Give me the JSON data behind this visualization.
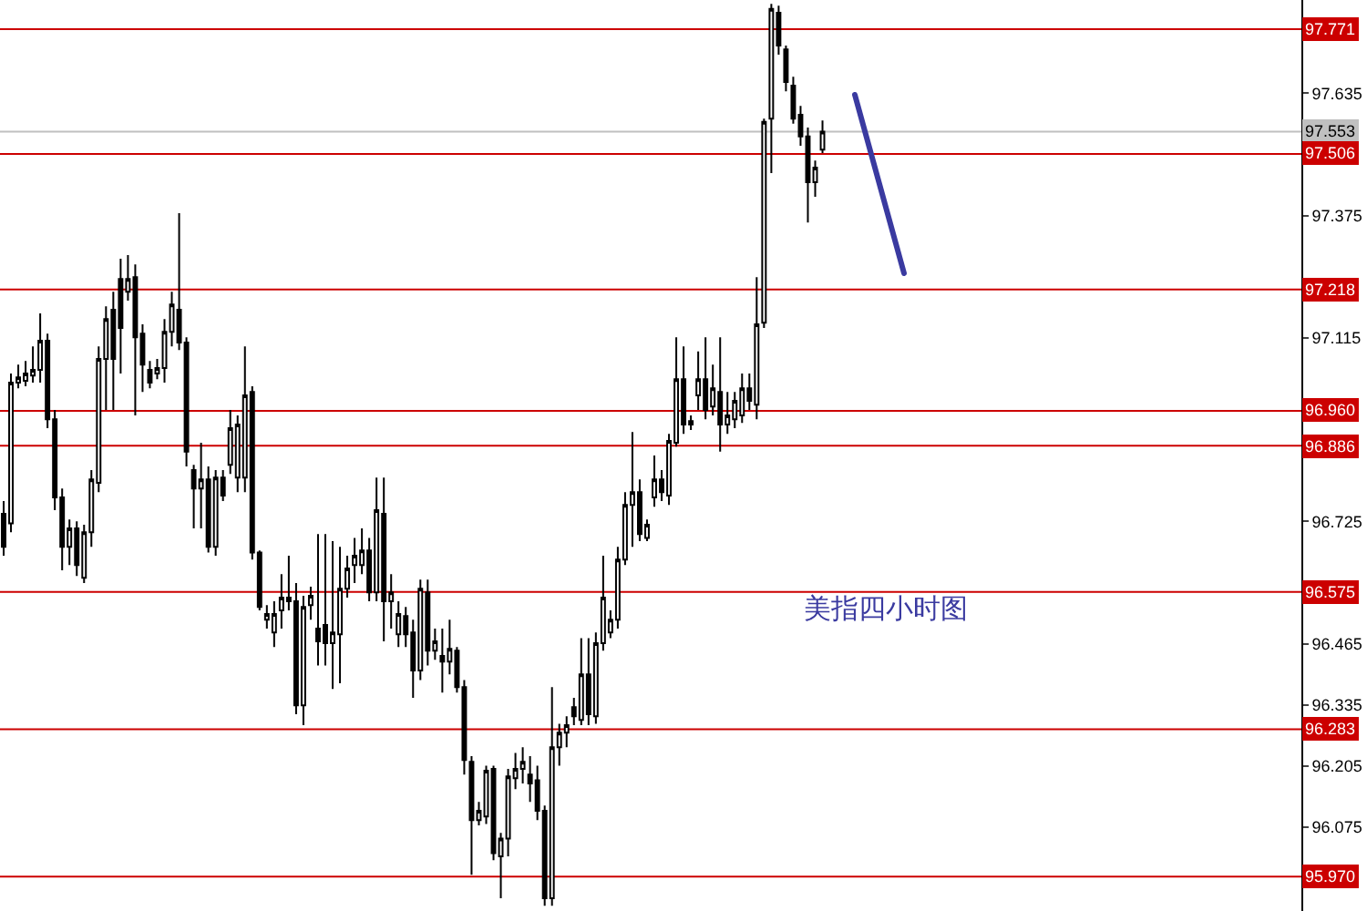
{
  "chart_data": {
    "type": "candlestick",
    "categories": [
      null,
      null,
      null,
      null,
      null,
      null,
      null,
      null,
      null,
      null,
      null,
      null,
      null,
      null,
      null,
      null,
      null,
      null,
      null,
      null,
      null,
      null,
      null,
      null,
      null,
      null,
      null,
      null,
      null,
      null,
      null,
      null,
      null,
      null,
      null,
      null,
      null,
      null,
      null,
      null,
      null,
      null,
      null,
      null,
      null,
      null,
      null,
      null,
      null,
      null,
      null,
      null,
      null,
      null,
      null,
      null,
      null,
      null,
      null,
      null,
      null,
      null,
      null,
      null,
      null,
      null,
      null,
      null,
      null,
      null,
      null,
      null,
      null,
      null,
      null,
      null,
      null,
      null,
      null,
      null,
      null,
      null,
      null,
      null,
      null,
      null,
      null,
      null,
      null,
      null,
      null,
      null,
      null,
      null,
      null,
      null,
      null,
      null,
      null,
      null,
      null,
      null,
      null,
      null,
      null,
      null,
      null,
      null,
      null,
      null,
      null,
      null,
      null,
      null,
      null,
      null,
      null,
      null,
      null,
      null,
      null,
      null,
      null,
      null,
      null,
      null,
      null,
      null,
      null,
      null,
      null,
      null,
      null,
      null,
      null,
      null,
      null,
      null,
      null,
      null,
      null,
      null,
      null,
      null,
      null,
      null,
      null,
      null,
      null,
      null,
      null,
      null,
      null,
      null,
      null,
      null,
      null,
      null,
      null,
      null,
      null,
      null,
      null,
      null,
      null,
      null,
      null,
      null,
      null,
      null,
      null,
      null,
      null,
      null,
      null,
      null,
      null,
      null
    ],
    "ohlc": [
      [
        96.741,
        96.768,
        96.652,
        96.671
      ],
      [
        96.721,
        97.039,
        96.702,
        97.02
      ],
      [
        97.02,
        97.058,
        97.008,
        97.031
      ],
      [
        97.024,
        97.066,
        97.012,
        97.039
      ],
      [
        97.035,
        97.097,
        97.02,
        97.047
      ],
      [
        97.047,
        97.167,
        97.02,
        97.109
      ],
      [
        97.109,
        97.124,
        96.923,
        96.942
      ],
      [
        96.942,
        96.962,
        96.749,
        96.776
      ],
      [
        96.776,
        96.795,
        96.621,
        96.671
      ],
      [
        96.671,
        96.729,
        96.632,
        96.71
      ],
      [
        96.71,
        96.725,
        96.609,
        96.632
      ],
      [
        96.605,
        96.718,
        96.594,
        96.702
      ],
      [
        96.702,
        96.834,
        96.671,
        96.814
      ],
      [
        96.807,
        97.097,
        96.787,
        97.07
      ],
      [
        97.07,
        97.182,
        96.962,
        97.155
      ],
      [
        97.175,
        97.213,
        96.962,
        97.07
      ],
      [
        97.24,
        97.283,
        97.039,
        97.136
      ],
      [
        97.213,
        97.291,
        97.194,
        97.24
      ],
      [
        97.244,
        97.271,
        96.95,
        97.116
      ],
      [
        97.124,
        97.144,
        97.0,
        97.058
      ],
      [
        97.047,
        97.066,
        97.008,
        97.02
      ],
      [
        97.039,
        97.07,
        97.027,
        97.051
      ],
      [
        97.051,
        97.155,
        97.02,
        97.128
      ],
      [
        97.128,
        97.213,
        97.097,
        97.186
      ],
      [
        97.175,
        97.38,
        97.089,
        97.105
      ],
      [
        97.105,
        97.116,
        96.842,
        96.873
      ],
      [
        96.834,
        96.845,
        96.71,
        96.795
      ],
      [
        96.795,
        96.892,
        96.71,
        96.814
      ],
      [
        96.814,
        96.842,
        96.659,
        96.671
      ],
      [
        96.671,
        96.834,
        96.652,
        96.818
      ],
      [
        96.818,
        96.834,
        96.768,
        96.78
      ],
      [
        96.845,
        96.962,
        96.826,
        96.923
      ],
      [
        96.818,
        96.95,
        96.787,
        96.931
      ],
      [
        96.818,
        97.097,
        96.787,
        96.993
      ],
      [
        97.0,
        97.012,
        96.644,
        96.659
      ],
      [
        96.659,
        96.663,
        96.536,
        96.543
      ],
      [
        96.516,
        96.547,
        96.497,
        96.528
      ],
      [
        96.489,
        96.555,
        96.458,
        96.528
      ],
      [
        96.536,
        96.613,
        96.497,
        96.563
      ],
      [
        96.563,
        96.652,
        96.536,
        96.555
      ],
      [
        96.555,
        96.594,
        96.315,
        96.334
      ],
      [
        96.334,
        96.567,
        96.292,
        96.543
      ],
      [
        96.547,
        96.586,
        96.516,
        96.567
      ],
      [
        96.497,
        96.698,
        96.419,
        96.47
      ],
      [
        96.505,
        96.698,
        96.419,
        96.466
      ],
      [
        96.466,
        96.683,
        96.369,
        96.489
      ],
      [
        96.485,
        96.671,
        96.381,
        96.582
      ],
      [
        96.582,
        96.652,
        96.563,
        96.625
      ],
      [
        96.632,
        96.69,
        96.594,
        96.652
      ],
      [
        96.632,
        96.71,
        96.613,
        96.663
      ],
      [
        96.663,
        96.69,
        96.555,
        96.574
      ],
      [
        96.574,
        96.818,
        96.555,
        96.749
      ],
      [
        96.741,
        96.818,
        96.47,
        96.555
      ],
      [
        96.555,
        96.613,
        96.497,
        96.574
      ],
      [
        96.485,
        96.555,
        96.458,
        96.528
      ],
      [
        96.524,
        96.543,
        96.458,
        96.485
      ],
      [
        96.489,
        96.516,
        96.35,
        96.408
      ],
      [
        96.408,
        96.601,
        96.388,
        96.582
      ],
      [
        96.574,
        96.601,
        96.419,
        96.45
      ],
      [
        96.45,
        96.497,
        96.431,
        96.47
      ],
      [
        96.439,
        96.497,
        96.361,
        96.427
      ],
      [
        96.427,
        96.516,
        96.4,
        96.454
      ],
      [
        96.45,
        96.458,
        96.361,
        96.373
      ],
      [
        96.373,
        96.388,
        96.187,
        96.218
      ],
      [
        96.214,
        96.226,
        95.974,
        96.09
      ],
      [
        96.09,
        96.129,
        96.079,
        96.11
      ],
      [
        96.098,
        96.206,
        96.082,
        96.195
      ],
      [
        96.199,
        96.206,
        96.005,
        96.02
      ],
      [
        96.013,
        96.063,
        95.924,
        96.051
      ],
      [
        96.051,
        96.199,
        96.013,
        96.183
      ],
      [
        96.179,
        96.233,
        96.156,
        96.199
      ],
      [
        96.199,
        96.245,
        96.168,
        96.214
      ],
      [
        96.187,
        96.226,
        96.129,
        96.168
      ],
      [
        96.175,
        96.206,
        96.09,
        96.11
      ],
      [
        96.11,
        96.121,
        95.908,
        95.924
      ],
      [
        95.924,
        96.373,
        95.908,
        96.245
      ],
      [
        96.245,
        96.295,
        96.206,
        96.276
      ],
      [
        96.276,
        96.311,
        96.245,
        96.292
      ],
      [
        96.33,
        96.35,
        96.292,
        96.311
      ],
      [
        96.303,
        96.477,
        96.292,
        96.4
      ],
      [
        96.4,
        96.477,
        96.292,
        96.315
      ],
      [
        96.311,
        96.489,
        96.295,
        96.466
      ],
      [
        96.466,
        96.652,
        96.45,
        96.563
      ],
      [
        96.489,
        96.536,
        96.477,
        96.516
      ],
      [
        96.516,
        96.671,
        96.497,
        96.644
      ],
      [
        96.644,
        96.787,
        96.632,
        96.76
      ],
      [
        96.76,
        96.915,
        96.671,
        96.787
      ],
      [
        96.787,
        96.814,
        96.683,
        96.698
      ],
      [
        96.69,
        96.729,
        96.683,
        96.718
      ],
      [
        96.776,
        96.865,
        96.756,
        96.814
      ],
      [
        96.814,
        96.834,
        96.768,
        96.787
      ],
      [
        96.78,
        96.911,
        96.76,
        96.896
      ],
      [
        96.892,
        97.116,
        96.884,
        97.027
      ],
      [
        97.027,
        97.097,
        96.911,
        96.931
      ],
      [
        96.938,
        96.95,
        96.919,
        96.931
      ],
      [
        96.993,
        97.086,
        96.962,
        97.027
      ],
      [
        97.027,
        97.116,
        96.942,
        96.962
      ],
      [
        96.969,
        97.058,
        96.95,
        97.008
      ],
      [
        97.0,
        97.116,
        96.873,
        96.931
      ],
      [
        96.931,
        97.0,
        96.911,
        96.95
      ],
      [
        96.942,
        97.0,
        96.923,
        96.981
      ],
      [
        96.95,
        97.039,
        96.934,
        97.008
      ],
      [
        97.008,
        97.039,
        96.962,
        96.981
      ],
      [
        96.973,
        97.244,
        96.942,
        97.144
      ],
      [
        97.147,
        97.581,
        97.136,
        97.574
      ],
      [
        97.581,
        97.825,
        97.465,
        97.814
      ],
      [
        97.806,
        97.821,
        97.717,
        97.736
      ],
      [
        97.728,
        97.736,
        97.639,
        97.659
      ],
      [
        97.651,
        97.67,
        97.57,
        97.581
      ],
      [
        97.589,
        97.608,
        97.523,
        97.543
      ],
      [
        97.543,
        97.562,
        97.36,
        97.446
      ],
      [
        97.446,
        97.492,
        97.415,
        97.477
      ],
      [
        97.515,
        97.577,
        97.508,
        97.553
      ],
      null,
      null,
      null,
      null,
      null,
      null,
      null,
      null,
      null,
      null,
      null,
      null,
      null,
      null,
      null,
      null,
      null,
      null,
      null,
      null,
      null,
      null,
      null,
      null,
      null,
      null,
      null,
      null,
      null,
      null,
      null,
      null,
      null,
      null,
      null,
      null,
      null,
      null,
      null,
      null,
      null,
      null,
      null,
      null,
      null,
      null,
      null,
      null,
      null,
      null,
      null,
      null,
      null,
      null,
      null,
      null,
      null,
      null,
      null,
      null,
      null,
      null,
      null,
      null,
      null
    ],
    "ylim": [
      95.897,
      97.833
    ],
    "yticks": [
      97.635,
      97.375,
      97.115,
      96.725,
      96.465,
      96.335,
      96.205,
      96.075
    ],
    "tick_labels": "y",
    "ref_lines": [
      {
        "axis": "y",
        "value": 97.771,
        "label": "97.771",
        "color": "#cc0000"
      },
      {
        "axis": "y",
        "value": 97.553,
        "label": "97.553",
        "color": "#c0c0c0"
      },
      {
        "axis": "y",
        "value": 97.506,
        "label": "97.506",
        "color": "#cc0000"
      },
      {
        "axis": "y",
        "value": 97.218,
        "label": "97.218",
        "color": "#cc0000"
      },
      {
        "axis": "y",
        "value": 96.96,
        "label": "96.960",
        "color": "#cc0000"
      },
      {
        "axis": "y",
        "value": 96.886,
        "label": "96.886",
        "color": "#cc0000"
      },
      {
        "axis": "y",
        "value": 96.575,
        "label": "96.575",
        "color": "#cc0000"
      },
      {
        "axis": "y",
        "value": 96.283,
        "label": "96.283",
        "color": "#cc0000"
      },
      {
        "axis": "y",
        "value": 95.97,
        "label": "95.970",
        "color": "#cc0000"
      }
    ],
    "annotations": [
      "美指四小时图"
    ]
  }
}
